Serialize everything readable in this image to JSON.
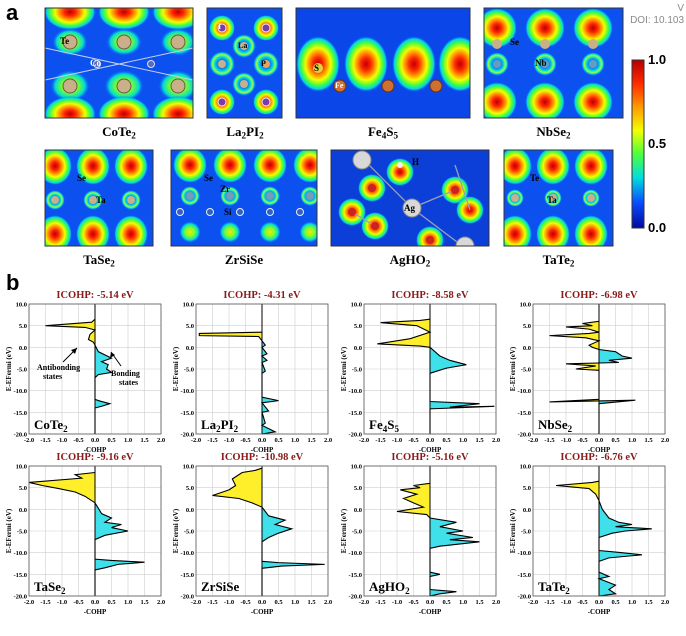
{
  "header": {
    "doi_prefix": "V",
    "doi": "DOI: 10.103"
  },
  "panel_a": {
    "label": "a",
    "colorbar": {
      "ticks": [
        "1.0",
        "0.5",
        "0.0"
      ],
      "colors": [
        "#b40000",
        "#ff2a00",
        "#ff9a00",
        "#f3ff00",
        "#4dff3c",
        "#00dede",
        "#0a4bff",
        "#000a9c"
      ]
    },
    "maps": [
      {
        "formula": "CoTe",
        "sub": "2",
        "atoms": [
          "Te",
          "Co"
        ]
      },
      {
        "formula": "La",
        "sub": "2",
        "formula2": "PI",
        "sub2": "2",
        "atoms": [
          "I",
          "La",
          "P"
        ]
      },
      {
        "formula": "Fe",
        "sub": "4",
        "formula2": "S",
        "sub2": "5",
        "atoms": [
          "S",
          "Fe"
        ]
      },
      {
        "formula": "NbSe",
        "sub": "2",
        "atoms": [
          "Se",
          "Nb"
        ]
      },
      {
        "formula": "TaSe",
        "sub": "2",
        "atoms": [
          "Se",
          "Ta"
        ]
      },
      {
        "formula": "ZrSiSe",
        "sub": "",
        "atoms": [
          "Se",
          "Zr",
          "Si"
        ]
      },
      {
        "formula": "AgHO",
        "sub": "2",
        "atoms": [
          "H",
          "Ag"
        ]
      },
      {
        "formula": "TaTe",
        "sub": "2",
        "atoms": [
          "Te",
          "Ta"
        ]
      }
    ]
  },
  "panel_b": {
    "label": "b",
    "annotations": {
      "antibonding": [
        "Antibonding",
        "states"
      ],
      "bonding": [
        "Bonding",
        "states"
      ]
    },
    "chart_data": [
      {
        "type": "area",
        "title": "ICOHP: -5.14 eV",
        "name": "CoTe",
        "sub": "2",
        "xlabel": "-COHP",
        "ylabel": "E-EFermi (eV)",
        "xlim": [
          -2.0,
          2.0
        ],
        "ylim": [
          -20.0,
          10.0
        ],
        "xticks": [
          "-2.0",
          "-1.5",
          "-1.0",
          "-0.5",
          "0.0",
          "0.5",
          "1.0",
          "1.5",
          "2.0"
        ],
        "yticks": [
          "10.0",
          "5.0",
          "0.0",
          "-5.0",
          "-10.0",
          "-15.0",
          "-20.0"
        ],
        "points": [
          [
            0,
            6.5
          ],
          [
            -0.1,
            5.8
          ],
          [
            -1.5,
            5
          ],
          [
            -0.3,
            4.6
          ],
          [
            0,
            4
          ],
          [
            -0.15,
            3
          ],
          [
            -0.2,
            1.8
          ],
          [
            -0.05,
            1.2
          ],
          [
            0,
            0.5
          ],
          [
            0.1,
            -1
          ],
          [
            0.5,
            -2.5
          ],
          [
            0.2,
            -3.3
          ],
          [
            0.4,
            -4
          ],
          [
            0.35,
            -5
          ],
          [
            0.5,
            -5.8
          ],
          [
            0.1,
            -6.3
          ],
          [
            0,
            -7
          ],
          [
            0,
            -12
          ],
          [
            0.15,
            -12.4
          ],
          [
            0.45,
            -13
          ],
          [
            0.2,
            -13.6
          ],
          [
            0,
            -14
          ],
          [
            0,
            -20
          ]
        ]
      },
      {
        "type": "area",
        "title": "ICOHP: -4.31 eV",
        "name": "La",
        "sub": "2",
        "name2": "PI",
        "sub2": "2",
        "xlabel": "-COHP",
        "ylabel": "E-EFermi (eV)",
        "xlim": [
          -2.0,
          2.0
        ],
        "ylim": [
          -20.0,
          10.0
        ],
        "xticks": [
          "-2.0",
          "-1.5",
          "-1.0",
          "-0.5",
          "0.0",
          "0.5",
          "1.0",
          "1.5",
          "2.0"
        ],
        "yticks": [
          "10.0",
          "5.0",
          "0.0",
          "-5.0",
          "-10.0",
          "-15.0",
          "-20.0"
        ],
        "points": [
          [
            0,
            3.5
          ],
          [
            -1.9,
            3.2
          ],
          [
            -1.9,
            2.7
          ],
          [
            -0.1,
            2.5
          ],
          [
            0,
            1.5
          ],
          [
            0.1,
            0.5
          ],
          [
            0,
            0
          ],
          [
            0.15,
            -1.5
          ],
          [
            0,
            -2
          ],
          [
            0.15,
            -3
          ],
          [
            0,
            -3.5
          ],
          [
            0.1,
            -5.5
          ],
          [
            0,
            -6
          ],
          [
            0,
            -11.5
          ],
          [
            0.5,
            -12.3
          ],
          [
            0,
            -12.8
          ],
          [
            0.2,
            -14.7
          ],
          [
            0,
            -15
          ],
          [
            0.1,
            -17.5
          ],
          [
            0,
            -18
          ],
          [
            0.4,
            -19.5
          ],
          [
            0,
            -20
          ]
        ]
      },
      {
        "type": "area",
        "title": "ICOHP: -8.58 eV",
        "name": "Fe",
        "sub": "4",
        "name2": "S",
        "sub2": "5",
        "xlabel": "-COHP",
        "ylabel": "E-EFermi (eV)",
        "xlim": [
          -2.0,
          2.0
        ],
        "ylim": [
          -20.0,
          10.0
        ],
        "xticks": [
          "-2.0",
          "-1.5",
          "-1.0",
          "-0.5",
          "0.0",
          "0.5",
          "1.0",
          "1.5",
          "2.0"
        ],
        "yticks": [
          "10.0",
          "5.0",
          "0.0",
          "-5.0",
          "-10.0",
          "-15.0",
          "-20.0"
        ],
        "points": [
          [
            0,
            6.5
          ],
          [
            -0.3,
            6.2
          ],
          [
            -1.5,
            5.7
          ],
          [
            -0.4,
            5
          ],
          [
            0,
            3.5
          ],
          [
            -0.6,
            2
          ],
          [
            -1.6,
            0.8
          ],
          [
            -0.3,
            0.3
          ],
          [
            0,
            0
          ],
          [
            0.3,
            -2
          ],
          [
            0.6,
            -3
          ],
          [
            1.1,
            -4
          ],
          [
            0.5,
            -4.8
          ],
          [
            0.2,
            -5.5
          ],
          [
            0,
            -6
          ],
          [
            0,
            -12.5
          ],
          [
            1.5,
            -13
          ],
          [
            0.6,
            -13.8
          ],
          [
            1.95,
            -13.6
          ],
          [
            0,
            -14.2
          ],
          [
            0,
            -20
          ]
        ]
      },
      {
        "type": "area",
        "title": "ICOHP: -6.98 eV",
        "name": "NbSe",
        "sub": "2",
        "xlabel": "-COHP",
        "ylabel": "E-EFermi (eV)",
        "xlim": [
          -2.0,
          2.0
        ],
        "ylim": [
          -20.0,
          10.0
        ],
        "xticks": [
          "-2.0",
          "-1.5",
          "-1.0",
          "-0.5",
          "0.0",
          "0.5",
          "1.0",
          "1.5",
          "2.0"
        ],
        "yticks": [
          "10.0",
          "5.0",
          "0.0",
          "-5.0",
          "-10.0",
          "-15.0",
          "-20.0"
        ],
        "points": [
          [
            0,
            6
          ],
          [
            -0.5,
            5.5
          ],
          [
            -0.2,
            5
          ],
          [
            -1.0,
            4.7
          ],
          [
            -0.3,
            4.2
          ],
          [
            0,
            3.5
          ],
          [
            -0.3,
            3.2
          ],
          [
            -1.5,
            2.7
          ],
          [
            -0.4,
            2.2
          ],
          [
            0,
            1.5
          ],
          [
            -0.3,
            0.5
          ],
          [
            -0.2,
            0
          ],
          [
            0,
            -0.5
          ],
          [
            0.5,
            -1
          ],
          [
            0.7,
            -2
          ],
          [
            1.0,
            -2.5
          ],
          [
            0.3,
            -3
          ],
          [
            0.6,
            -3.5
          ],
          [
            -1.0,
            -3.8
          ],
          [
            -0.1,
            -4.3
          ],
          [
            -0.7,
            -5
          ],
          [
            0,
            -5.3
          ],
          [
            0,
            -12
          ],
          [
            -1.5,
            -12.6
          ],
          [
            1.1,
            -12.2
          ],
          [
            0,
            -13
          ],
          [
            0,
            -20
          ]
        ]
      },
      {
        "type": "area",
        "title": "ICOHP: -9.16 eV",
        "name": "TaSe",
        "sub": "2",
        "xlabel": "-COHP",
        "ylabel": "E-EFermi (eV)",
        "xlim": [
          -2.0,
          2.0
        ],
        "ylim": [
          -20.0,
          10.0
        ],
        "xticks": [
          "-2.0",
          "-1.5",
          "-1.0",
          "-0.5",
          "0.0",
          "0.5",
          "1.0",
          "1.5",
          "2.0"
        ],
        "yticks": [
          "10.0",
          "5.0",
          "0.0",
          "-5.0",
          "-10.0",
          "-15.0",
          "-20.0"
        ],
        "points": [
          [
            0,
            8.5
          ],
          [
            -0.6,
            8
          ],
          [
            -0.4,
            7.2
          ],
          [
            -2.0,
            6.2
          ],
          [
            -1.6,
            5.5
          ],
          [
            -1.1,
            4.8
          ],
          [
            -0.6,
            4
          ],
          [
            -0.3,
            3
          ],
          [
            0,
            1.5
          ],
          [
            0.2,
            -1
          ],
          [
            0.5,
            -2
          ],
          [
            0.3,
            -3
          ],
          [
            0.8,
            -3.5
          ],
          [
            0.5,
            -4.2
          ],
          [
            1.0,
            -5
          ],
          [
            0.3,
            -6
          ],
          [
            0,
            -7
          ],
          [
            0,
            -11.5
          ],
          [
            0.5,
            -11.8
          ],
          [
            1.5,
            -12.2
          ],
          [
            0.7,
            -12.7
          ],
          [
            0.3,
            -13.5
          ],
          [
            0,
            -14
          ],
          [
            0,
            -20
          ]
        ]
      },
      {
        "type": "area",
        "title": "ICOHP: -10.98 eV",
        "name": "ZrSiSe",
        "sub": "",
        "xlabel": "-COHP",
        "ylabel": "E-EFermi (eV)",
        "xlim": [
          -2.0,
          2.0
        ],
        "ylim": [
          -20.0,
          10.0
        ],
        "xticks": [
          "-2.0",
          "-1.5",
          "-1.0",
          "-0.5",
          "0.0",
          "0.5",
          "1.0",
          "1.5",
          "2.0"
        ],
        "yticks": [
          "10.0",
          "5.0",
          "0.0",
          "-5.0",
          "-10.0",
          "-15.0",
          "-20.0"
        ],
        "points": [
          [
            0,
            9.5
          ],
          [
            -0.2,
            9
          ],
          [
            -0.6,
            8.5
          ],
          [
            -0.9,
            7
          ],
          [
            -0.8,
            5.5
          ],
          [
            -1.0,
            4.5
          ],
          [
            -1.5,
            3.2
          ],
          [
            -0.7,
            2.5
          ],
          [
            -0.3,
            1.5
          ],
          [
            0,
            0.5
          ],
          [
            0.2,
            -1.5
          ],
          [
            0.7,
            -2.5
          ],
          [
            0.4,
            -3.5
          ],
          [
            0.9,
            -4.5
          ],
          [
            0.5,
            -5.5
          ],
          [
            0.2,
            -6.5
          ],
          [
            0,
            -7.5
          ],
          [
            0,
            -12
          ],
          [
            0.5,
            -12.3
          ],
          [
            1.9,
            -12.7
          ],
          [
            0.6,
            -13.1
          ],
          [
            0,
            -13.6
          ],
          [
            0,
            -20
          ]
        ]
      },
      {
        "type": "area",
        "title": "ICOHP: -5.16 eV",
        "name": "AgHO",
        "sub": "2",
        "xlabel": "-COHP",
        "ylabel": "E-EFermi (eV)",
        "xlim": [
          -2.0,
          2.0
        ],
        "ylim": [
          -20.0,
          10.0
        ],
        "xticks": [
          "-2.0",
          "-1.5",
          "-1.0",
          "-0.5",
          "0.0",
          "0.5",
          "1.0",
          "1.5",
          "2.0"
        ],
        "yticks": [
          "10.0",
          "5.0",
          "0.0",
          "-5.0",
          "-10.0",
          "-15.0",
          "-20.0"
        ],
        "points": [
          [
            0,
            6
          ],
          [
            -0.5,
            5.5
          ],
          [
            -0.3,
            5
          ],
          [
            -0.9,
            4.5
          ],
          [
            -0.4,
            3.5
          ],
          [
            -0.8,
            2.5
          ],
          [
            -0.5,
            1.5
          ],
          [
            -0.2,
            0.5
          ],
          [
            -1.0,
            -0.5
          ],
          [
            -0.1,
            -1.2
          ],
          [
            0,
            -2
          ],
          [
            0.8,
            -3
          ],
          [
            0.3,
            -4
          ],
          [
            1.0,
            -5
          ],
          [
            0.5,
            -5.5
          ],
          [
            1.3,
            -6.5
          ],
          [
            0.6,
            -7
          ],
          [
            1.5,
            -7.5
          ],
          [
            0.3,
            -8.5
          ],
          [
            0,
            -9
          ],
          [
            0,
            -14.5
          ],
          [
            0.3,
            -15
          ],
          [
            0,
            -15.5
          ],
          [
            0,
            -18.5
          ],
          [
            0.8,
            -19
          ],
          [
            0.3,
            -19.5
          ],
          [
            0,
            -20
          ]
        ]
      },
      {
        "type": "area",
        "title": "ICOHP: -6.76 eV",
        "name": "TaTe",
        "sub": "2",
        "xlabel": "-COHP",
        "ylabel": "E-EFermi (eV)",
        "xlim": [
          -2.0,
          2.0
        ],
        "ylim": [
          -20.0,
          10.0
        ],
        "xticks": [
          "-2.0",
          "-1.5",
          "-1.0",
          "-0.5",
          "0.0",
          "0.5",
          "1.0",
          "1.5",
          "2.0"
        ],
        "yticks": [
          "10.0",
          "5.0",
          "0.0",
          "-5.0",
          "-10.0",
          "-15.0",
          "-20.0"
        ],
        "points": [
          [
            0,
            6.5
          ],
          [
            -0.2,
            6.2
          ],
          [
            -1.3,
            5.5
          ],
          [
            -0.3,
            4.8
          ],
          [
            -0.1,
            3.5
          ],
          [
            0,
            2
          ],
          [
            0.1,
            0
          ],
          [
            0.3,
            -2
          ],
          [
            0.6,
            -3
          ],
          [
            1.0,
            -3.5
          ],
          [
            0.5,
            -4
          ],
          [
            1.6,
            -4.5
          ],
          [
            0.8,
            -5
          ],
          [
            0.4,
            -5.5
          ],
          [
            0,
            -6.5
          ],
          [
            0,
            -9.5
          ],
          [
            0.7,
            -10
          ],
          [
            1.3,
            -10.5
          ],
          [
            0.3,
            -11.2
          ],
          [
            0,
            -12
          ],
          [
            0,
            -14.5
          ],
          [
            0.3,
            -15.5
          ],
          [
            0,
            -16
          ],
          [
            0.5,
            -17.5
          ],
          [
            0.3,
            -18.5
          ],
          [
            0.5,
            -19.5
          ],
          [
            0,
            -20
          ]
        ]
      }
    ]
  }
}
